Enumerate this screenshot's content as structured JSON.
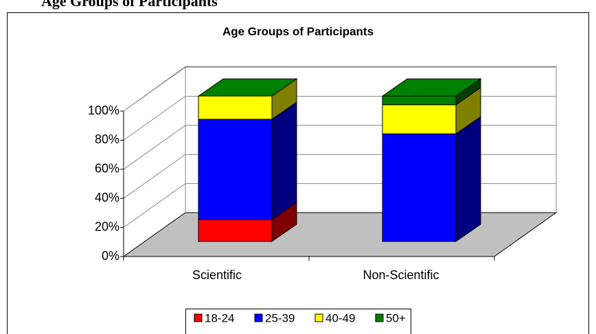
{
  "heading": "Age Groups of Participants",
  "chart_data": {
    "type": "bar3d_stacked",
    "title": "Age Groups of Participants",
    "categories": [
      "Scientific",
      "Non-Scientific"
    ],
    "series": [
      {
        "name": "18-24",
        "color": "#ff0000",
        "values": [
          15,
          0
        ]
      },
      {
        "name": "25-39",
        "color": "#0000ff",
        "values": [
          69,
          74
        ]
      },
      {
        "name": "40-49",
        "color": "#ffff00",
        "values": [
          16,
          20
        ]
      },
      {
        "name": "50+",
        "color": "#008000",
        "values": [
          0,
          6
        ]
      }
    ],
    "ylim": [
      0,
      100
    ],
    "yticks": [
      {
        "value": 0,
        "label": "0%"
      },
      {
        "value": 20,
        "label": "20%"
      },
      {
        "value": 40,
        "label": "40%"
      },
      {
        "value": 60,
        "label": "60%"
      },
      {
        "value": 80,
        "label": "80%"
      },
      {
        "value": 100,
        "label": "100%"
      }
    ],
    "grid": true,
    "legend": "bottom"
  }
}
